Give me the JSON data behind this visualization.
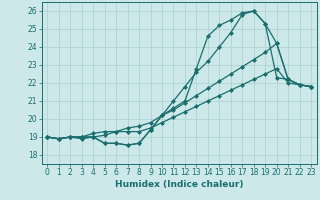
{
  "xlabel": "Humidex (Indice chaleur)",
  "bg_color": "#cce8e8",
  "grid_color": "#aacfcf",
  "line_color": "#1a6e6e",
  "xlim": [
    -0.5,
    23.5
  ],
  "ylim": [
    17.5,
    26.5
  ],
  "xticks": [
    0,
    1,
    2,
    3,
    4,
    5,
    6,
    7,
    8,
    9,
    10,
    11,
    12,
    13,
    14,
    15,
    16,
    17,
    18,
    19,
    20,
    21,
    22,
    23
  ],
  "yticks": [
    18,
    19,
    20,
    21,
    22,
    23,
    24,
    25,
    26
  ],
  "series": [
    [
      19.0,
      18.9,
      19.0,
      18.9,
      19.0,
      18.65,
      18.65,
      18.55,
      18.65,
      19.4,
      20.2,
      21.0,
      21.8,
      22.6,
      23.2,
      24.0,
      24.8,
      25.8,
      26.0,
      25.3,
      24.2,
      22.2,
      21.9,
      21.8
    ],
    [
      19.0,
      18.9,
      19.0,
      19.0,
      19.0,
      18.65,
      18.65,
      18.55,
      18.65,
      19.4,
      20.2,
      20.5,
      20.9,
      21.3,
      21.7,
      22.1,
      22.5,
      22.9,
      23.3,
      23.7,
      24.2,
      22.2,
      21.9,
      21.8
    ],
    [
      19.0,
      18.9,
      19.0,
      19.0,
      19.2,
      19.3,
      19.3,
      19.3,
      19.3,
      19.5,
      19.8,
      20.1,
      20.4,
      20.7,
      21.0,
      21.3,
      21.6,
      21.9,
      22.2,
      22.5,
      22.8,
      22.0,
      21.9,
      21.8
    ],
    [
      19.0,
      18.9,
      19.0,
      19.0,
      19.0,
      19.1,
      19.3,
      19.5,
      19.6,
      19.8,
      20.2,
      20.6,
      21.0,
      22.8,
      24.6,
      25.2,
      25.5,
      25.9,
      26.0,
      25.3,
      22.3,
      22.2,
      21.9,
      21.8
    ]
  ]
}
